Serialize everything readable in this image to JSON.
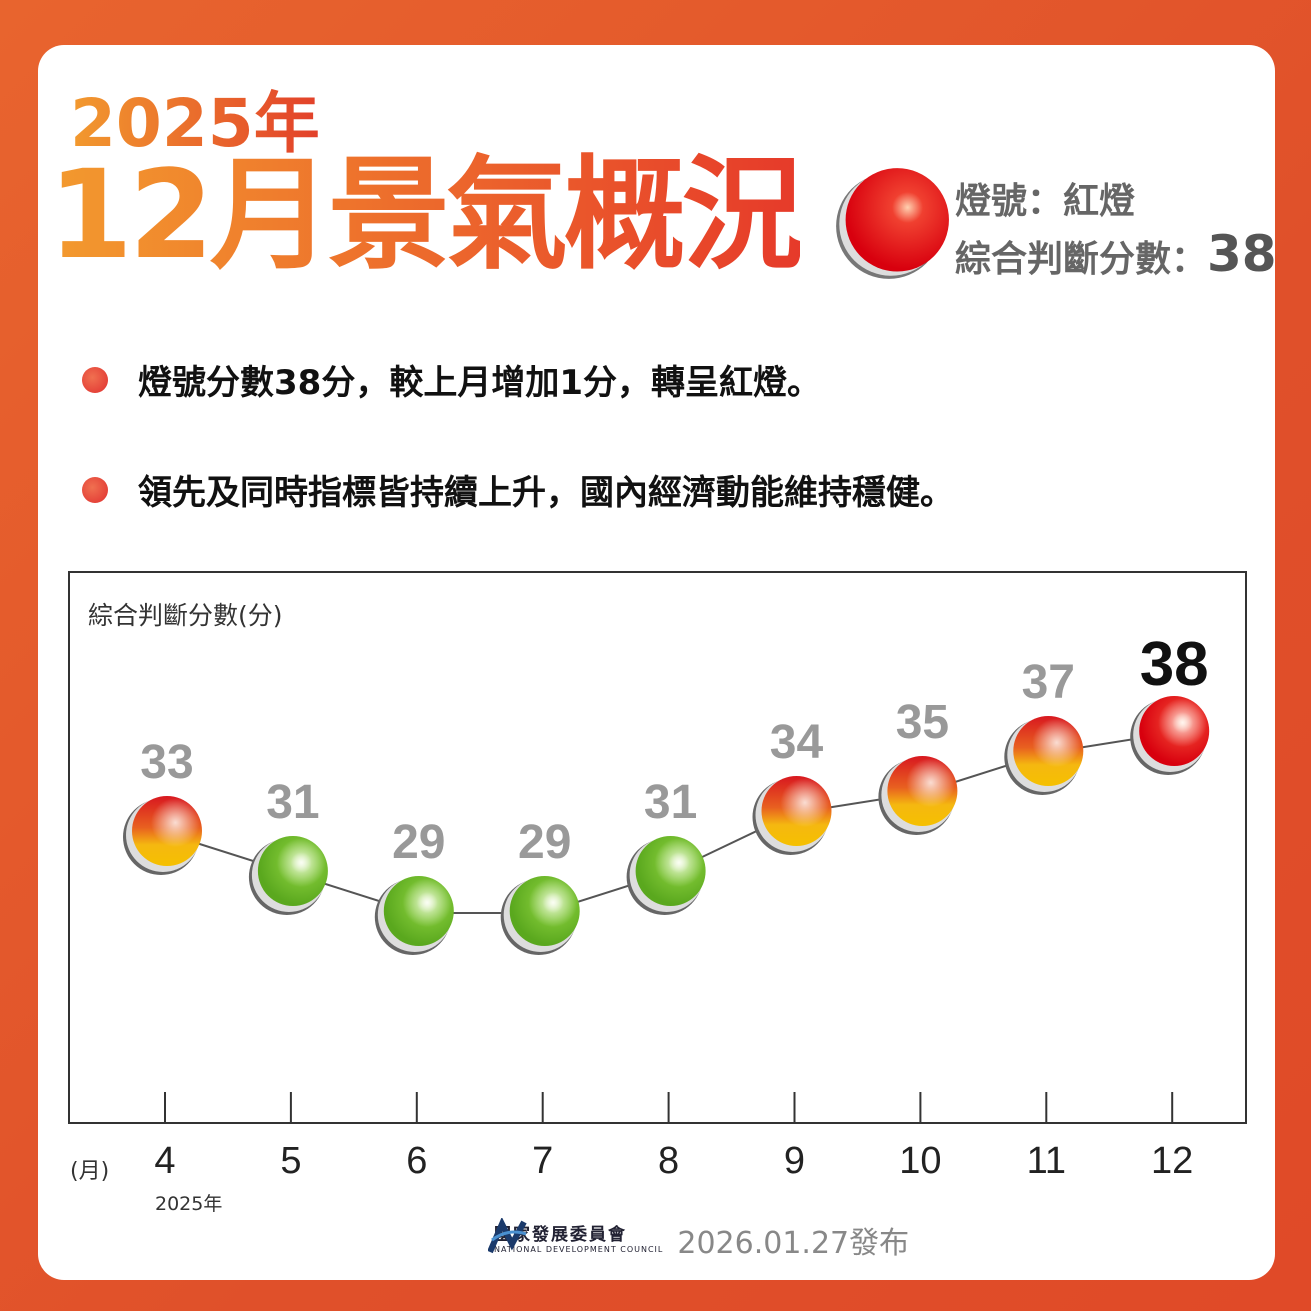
{
  "header": {
    "year": "2025年",
    "title": "12月景氣概況",
    "signal_label": "燈號：紅燈",
    "score_label": "綜合判斷分數：",
    "score": "38",
    "signal_color": "#e3101a"
  },
  "bullets": [
    "燈號分數38分，較上月增加1分，轉呈紅燈。",
    "領先及同時指標皆持續上升，國內經濟動能維持穩健。"
  ],
  "chart_data": {
    "type": "line",
    "ylabel": "綜合判斷分數(分)",
    "xlabel": "(月)",
    "x_sublabel": "2025年",
    "categories": [
      "4",
      "5",
      "6",
      "7",
      "8",
      "9",
      "10",
      "11",
      "12"
    ],
    "values": [
      33,
      31,
      29,
      29,
      31,
      34,
      35,
      37,
      38
    ],
    "signals": [
      "yellow-red",
      "green",
      "green",
      "green",
      "green",
      "yellow-red",
      "yellow-red",
      "yellow-red",
      "red"
    ],
    "signal_colors": {
      "green": "#6cbb2a",
      "yellow-red": "#f0b010",
      "red": "#e3101a"
    }
  },
  "footer": {
    "org_zh": "國家發展委員會",
    "org_en": "NATIONAL DEVELOPMENT COUNCIL",
    "date": "2026.01.27發布"
  }
}
